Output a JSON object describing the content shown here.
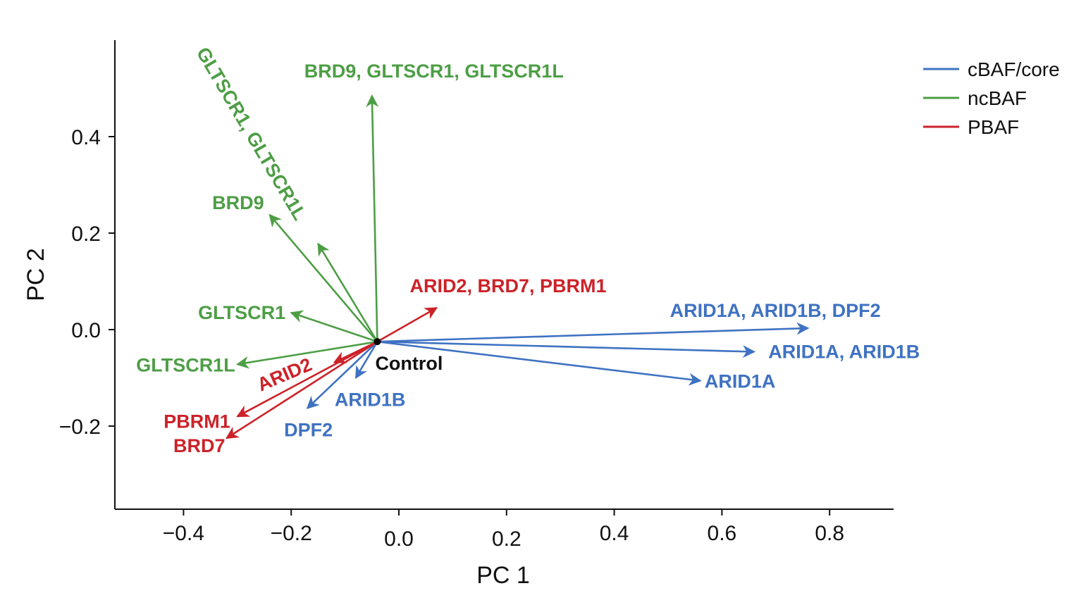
{
  "chart_data": {
    "type": "biplot",
    "xlabel": "PC 1",
    "ylabel": "PC 2",
    "xlim": [
      -0.53,
      0.92
    ],
    "ylim": [
      -0.375,
      0.6
    ],
    "xticks": [
      -0.4,
      -0.2,
      0.0,
      0.2,
      0.4,
      0.6,
      0.8
    ],
    "xtick_labels": [
      "−0.4",
      "−0.2",
      "0.0",
      "0.2",
      "0.4",
      "0.6",
      "0.8"
    ],
    "yticks": [
      0.4,
      0.2,
      0.0,
      -0.2
    ],
    "ytick_labels": [
      "0.4",
      "0.2",
      "0.0",
      "−0.2"
    ],
    "origin": {
      "label": "Control",
      "x": -0.04,
      "y": -0.025
    },
    "groups": [
      {
        "name": "cBAF/core",
        "color": "#3f72c2"
      },
      {
        "name": "ncBAF",
        "color": "#4d9e45"
      },
      {
        "name": "PBAF",
        "color": "#cc2229"
      }
    ],
    "legend": {
      "position": "top-right",
      "entries": [
        "cBAF/core",
        "ncBAF",
        "PBAF"
      ]
    },
    "vectors": [
      {
        "label": "ARID1A, ARID1B, DPF2",
        "group": "cBAF/core",
        "x": 0.76,
        "y": 0.003
      },
      {
        "label": "ARID1A, ARID1B",
        "group": "cBAF/core",
        "x": 0.66,
        "y": -0.046
      },
      {
        "label": "ARID1A",
        "group": "cBAF/core",
        "x": 0.56,
        "y": -0.106
      },
      {
        "label": "ARID1B",
        "group": "cBAF/core",
        "x": -0.08,
        "y": -0.1
      },
      {
        "label": "DPF2",
        "group": "cBAF/core",
        "x": -0.17,
        "y": -0.163
      },
      {
        "label": "BRD9, GLTSCR1, GLTSCR1L",
        "group": "ncBAF",
        "x": -0.05,
        "y": 0.485
      },
      {
        "label": "GLTSCR1, GLTSCR1L",
        "group": "ncBAF",
        "x": -0.15,
        "y": 0.178
      },
      {
        "label": "BRD9",
        "group": "ncBAF",
        "x": -0.24,
        "y": 0.238
      },
      {
        "label": "GLTSCR1",
        "group": "ncBAF",
        "x": -0.2,
        "y": 0.035
      },
      {
        "label": "GLTSCR1L",
        "group": "ncBAF",
        "x": -0.3,
        "y": -0.072
      },
      {
        "label": "ARID2, BRD7, PBRM1",
        "group": "PBAF",
        "x": 0.07,
        "y": 0.045
      },
      {
        "label": "ARID2",
        "group": "PBAF",
        "x": -0.12,
        "y": -0.068
      },
      {
        "label": "PBRM1",
        "group": "PBAF",
        "x": -0.3,
        "y": -0.18
      },
      {
        "label": "BRD7",
        "group": "PBAF",
        "x": -0.32,
        "y": -0.225
      }
    ]
  }
}
